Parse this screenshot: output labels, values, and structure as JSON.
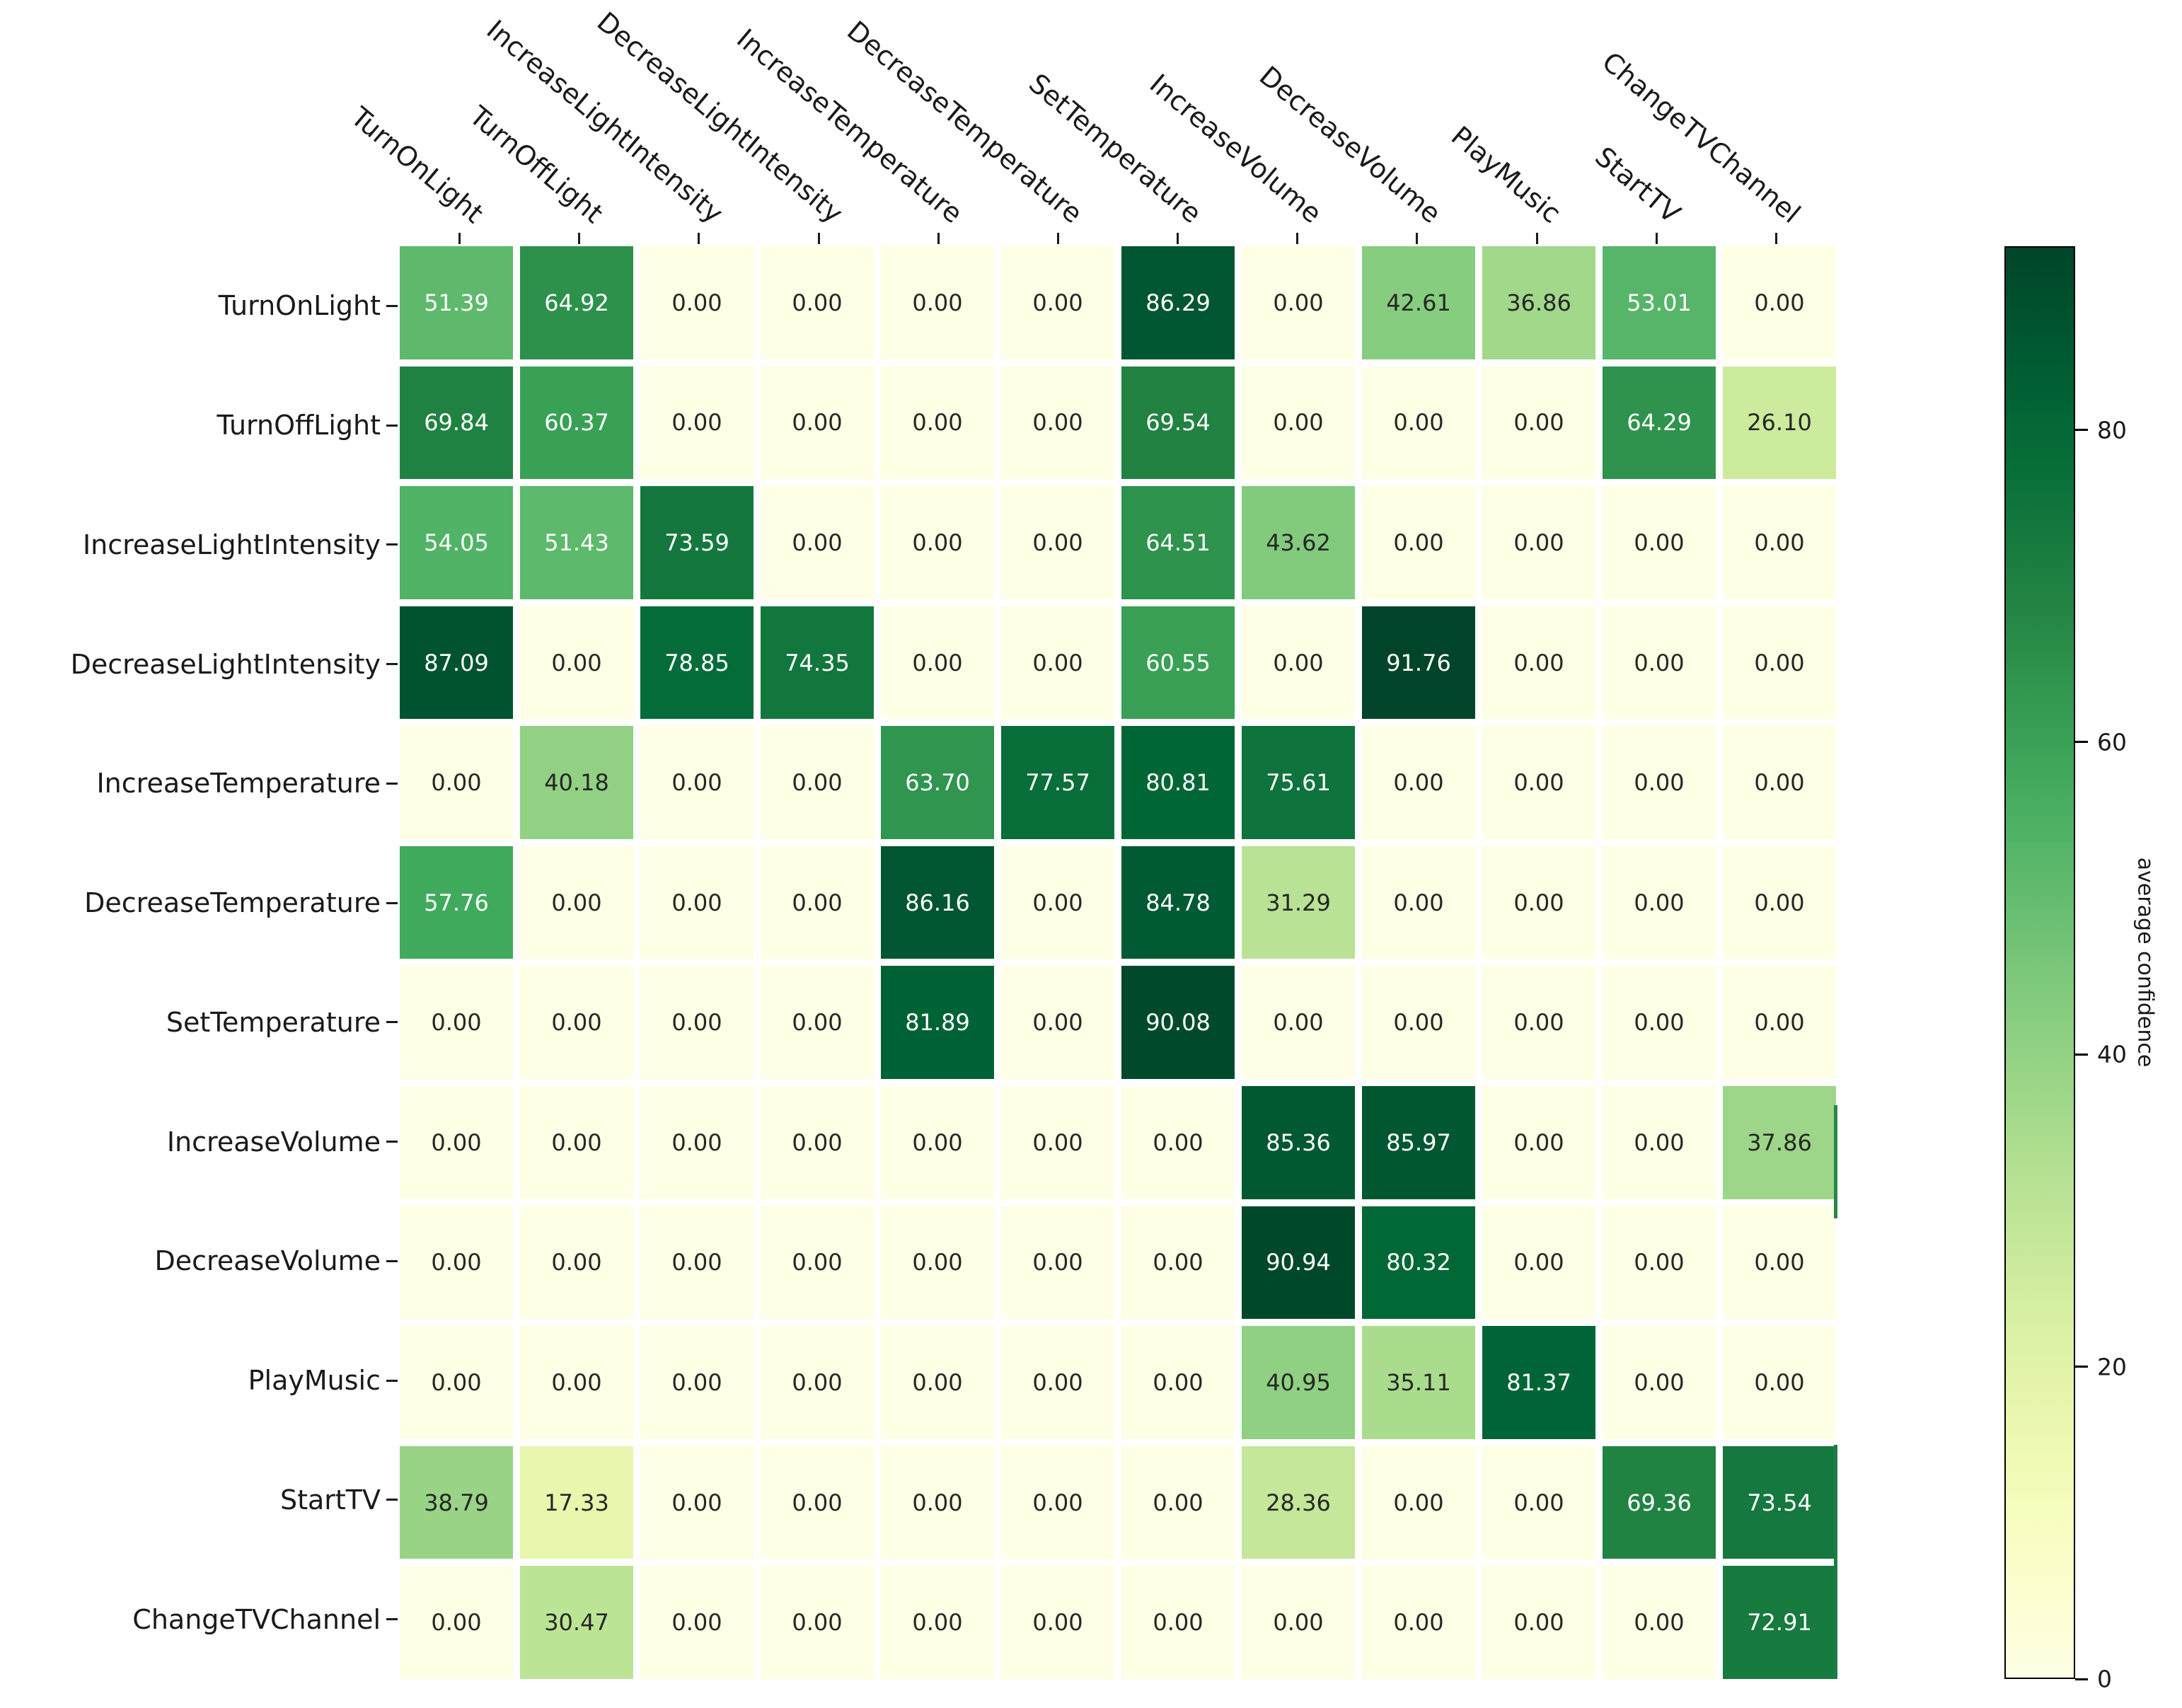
{
  "figure": {
    "background": "#ffffff"
  },
  "chart_data": {
    "type": "heatmap",
    "title": "",
    "x_labels": [
      "TurnOnLight",
      "TurnOffLight",
      "IncreaseLightIntensity",
      "DecreaseLightIntensity",
      "IncreaseTemperature",
      "DecreaseTemperature",
      "SetTemperature",
      "IncreaseVolume",
      "DecreaseVolume",
      "PlayMusic",
      "StartTV",
      "ChangeTVChannel"
    ],
    "y_labels": [
      "TurnOnLight",
      "TurnOffLight",
      "IncreaseLightIntensity",
      "DecreaseLightIntensity",
      "IncreaseTemperature",
      "DecreaseTemperature",
      "SetTemperature",
      "IncreaseVolume",
      "DecreaseVolume",
      "PlayMusic",
      "StartTV",
      "ChangeTVChannel"
    ],
    "values": [
      [
        51.39,
        64.92,
        0.0,
        0.0,
        0.0,
        0.0,
        86.29,
        0.0,
        42.61,
        36.86,
        53.01,
        0.0
      ],
      [
        69.84,
        60.37,
        0.0,
        0.0,
        0.0,
        0.0,
        69.54,
        0.0,
        0.0,
        0.0,
        64.29,
        26.1
      ],
      [
        54.05,
        51.43,
        73.59,
        0.0,
        0.0,
        0.0,
        64.51,
        43.62,
        0.0,
        0.0,
        0.0,
        0.0
      ],
      [
        87.09,
        0.0,
        78.85,
        74.35,
        0.0,
        0.0,
        60.55,
        0.0,
        91.76,
        0.0,
        0.0,
        0.0
      ],
      [
        0.0,
        40.18,
        0.0,
        0.0,
        63.7,
        77.57,
        80.81,
        75.61,
        0.0,
        0.0,
        0.0,
        0.0
      ],
      [
        57.76,
        0.0,
        0.0,
        0.0,
        86.16,
        0.0,
        84.78,
        31.29,
        0.0,
        0.0,
        0.0,
        0.0
      ],
      [
        0.0,
        0.0,
        0.0,
        0.0,
        81.89,
        0.0,
        90.08,
        0.0,
        0.0,
        0.0,
        0.0,
        0.0
      ],
      [
        0.0,
        0.0,
        0.0,
        0.0,
        0.0,
        0.0,
        0.0,
        85.36,
        85.97,
        0.0,
        0.0,
        37.86
      ],
      [
        0.0,
        0.0,
        0.0,
        0.0,
        0.0,
        0.0,
        0.0,
        90.94,
        80.32,
        0.0,
        0.0,
        0.0
      ],
      [
        0.0,
        0.0,
        0.0,
        0.0,
        0.0,
        0.0,
        0.0,
        40.95,
        35.11,
        81.37,
        0.0,
        0.0
      ],
      [
        38.79,
        17.33,
        0.0,
        0.0,
        0.0,
        0.0,
        0.0,
        28.36,
        0.0,
        0.0,
        69.36,
        73.54
      ],
      [
        0.0,
        30.47,
        0.0,
        0.0,
        0.0,
        0.0,
        0.0,
        0.0,
        0.0,
        0.0,
        0.0,
        72.91
      ]
    ],
    "value_decimals": 2,
    "vmin": 0,
    "vmax": 91.76,
    "colormap": "YlGn",
    "colormap_stops": [
      "#ffffe5",
      "#f7fcb9",
      "#d9f0a3",
      "#addd8e",
      "#78c679",
      "#41ab5d",
      "#238443",
      "#006837",
      "#004529"
    ],
    "annotation_text_light": "#ffffff",
    "annotation_text_dark": "#262626",
    "colorbar_label": "average confidence",
    "colorbar_ticks": [
      0,
      20,
      40,
      60,
      80
    ],
    "colorbar_position": "right",
    "grid_on": false
  }
}
